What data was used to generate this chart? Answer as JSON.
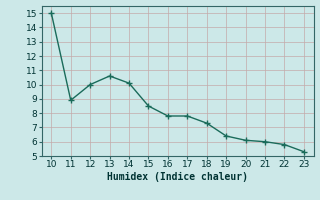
{
  "x": [
    10,
    11,
    12,
    13,
    14,
    15,
    16,
    17,
    18,
    19,
    20,
    21,
    22,
    23
  ],
  "y": [
    15.0,
    8.9,
    10.0,
    10.6,
    10.1,
    8.5,
    7.8,
    7.8,
    7.3,
    6.4,
    6.1,
    6.0,
    5.8,
    5.3
  ],
  "xlim": [
    9.5,
    23.5
  ],
  "ylim": [
    5,
    15.5
  ],
  "xticks": [
    10,
    11,
    12,
    13,
    14,
    15,
    16,
    17,
    18,
    19,
    20,
    21,
    22,
    23
  ],
  "yticks": [
    5,
    6,
    7,
    8,
    9,
    10,
    11,
    12,
    13,
    14,
    15
  ],
  "xlabel": "Humidex (Indice chaleur)",
  "line_color": "#1a6b5a",
  "marker": "+",
  "marker_size": 4,
  "bg_color": "#cce8e8",
  "grid_color": "#c4aaaa",
  "xlabel_fontsize": 7,
  "tick_fontsize": 6.5,
  "linewidth": 1.0
}
